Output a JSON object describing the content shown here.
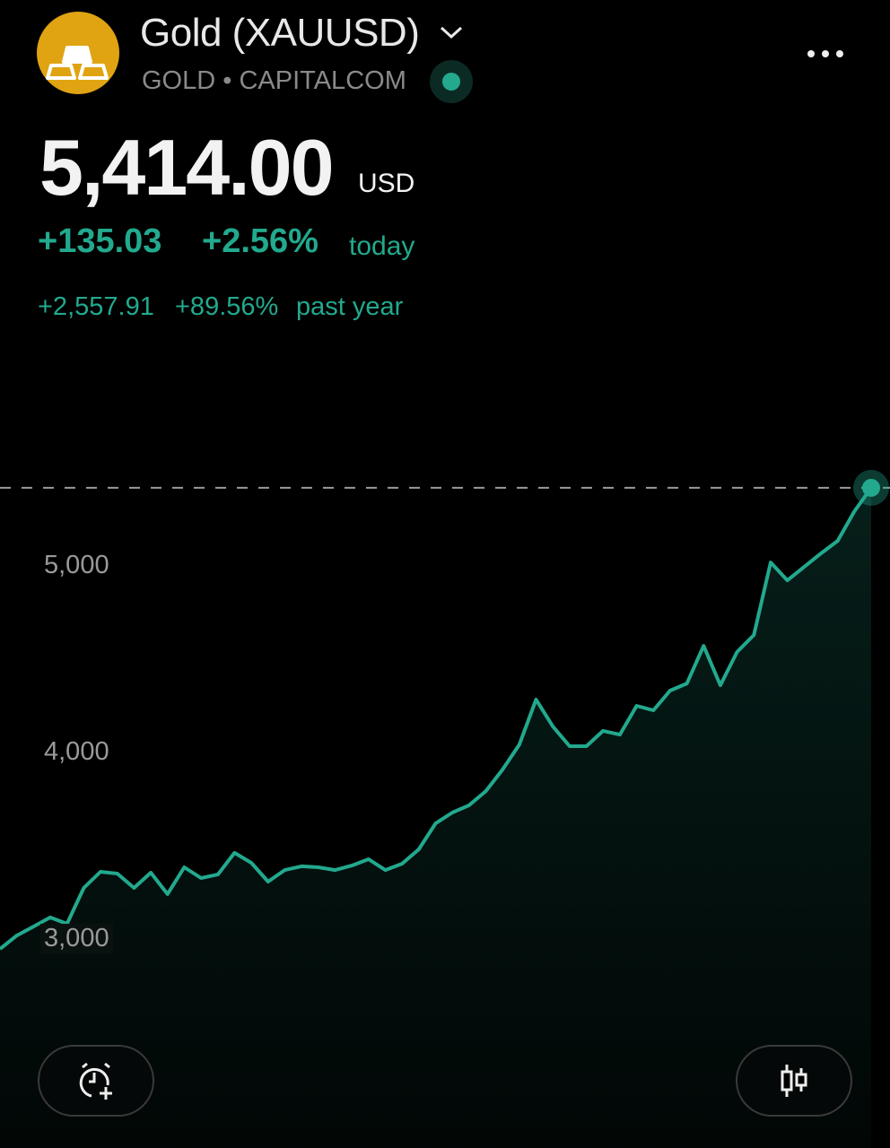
{
  "header": {
    "title": "Gold (XAUUSD)",
    "symbol": "GOLD",
    "separator": "•",
    "exchange": "CAPITALCOM",
    "logo_icon": "gold-bars-icon",
    "live_status_color": "#22a98e"
  },
  "quote": {
    "price": "5,414.00",
    "currency": "USD",
    "change_today": "+135.03",
    "change_today_pct": "+2.56%",
    "today_label": "today",
    "change_year": "+2,557.91",
    "change_year_pct": "+89.56%",
    "year_label": "past year"
  },
  "colors": {
    "accent": "#22a98e",
    "logo": "#e0a412",
    "background": "#000000"
  },
  "buttons": {
    "alert_icon": "alarm-plus-icon",
    "chart_type_icon": "candlestick-icon"
  },
  "chart_data": {
    "type": "area",
    "y_ticks": [
      "5,000",
      "4,000",
      "3,000"
    ],
    "y_tick_values": [
      5000,
      4000,
      3000
    ],
    "last_price_line": 5414,
    "values": [
      2942,
      3014,
      3062,
      3111,
      3077,
      3269,
      3356,
      3346,
      3269,
      3351,
      3236,
      3380,
      3322,
      3341,
      3457,
      3404,
      3303,
      3365,
      3385,
      3380,
      3365,
      3389,
      3423,
      3365,
      3399,
      3476,
      3615,
      3673,
      3712,
      3788,
      3904,
      4038,
      4279,
      4135,
      4029,
      4029,
      4111,
      4091,
      4245,
      4221,
      4327,
      4365,
      4567,
      4356,
      4534,
      4625,
      5014,
      4918,
      4990,
      5062,
      5130,
      5288,
      5414
    ],
    "grid": false
  }
}
